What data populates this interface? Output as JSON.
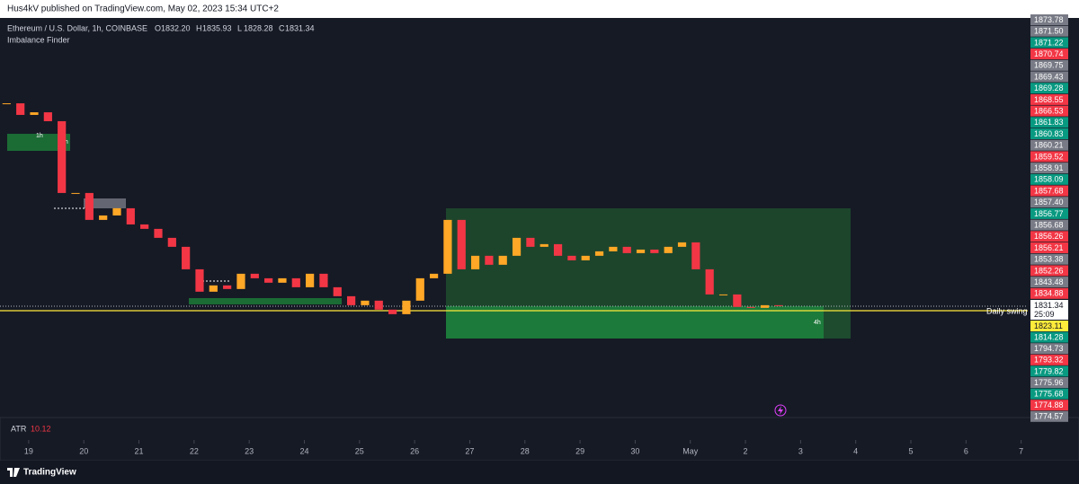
{
  "header": {
    "published": "Hus4kV published on TradingView.com, May 02, 2023 15:34 UTC+2"
  },
  "legend": {
    "symbol": "Ethereum / U.S. Dollar, 1h, COINBASE",
    "ohlc": [
      {
        "letter": "O",
        "value": "1832.20"
      },
      {
        "letter": "H",
        "value": "1835.93"
      },
      {
        "letter": "L",
        "value": "1828.28"
      },
      {
        "letter": "C",
        "value": "1831.34"
      }
    ],
    "indicator": "Imbalance Finder"
  },
  "zones": [
    "1h",
    "1h",
    "4h"
  ],
  "swing_label": "Daily swing",
  "atr": {
    "name": "ATR",
    "value": "10.12"
  },
  "price_labels": [
    {
      "text": "1873.78",
      "color": "#787b86"
    },
    {
      "text": "1871.50",
      "color": "#787b86"
    },
    {
      "text": "1871.22",
      "color": "#089981"
    },
    {
      "text": "1870.74",
      "color": "#f23645"
    },
    {
      "text": "1869.75",
      "color": "#787b86"
    },
    {
      "text": "1869.43",
      "color": "#787b86"
    },
    {
      "text": "1869.28",
      "color": "#089981"
    },
    {
      "text": "1868.55",
      "color": "#f23645"
    },
    {
      "text": "1866.53",
      "color": "#f23645"
    },
    {
      "text": "1861.83",
      "color": "#089981"
    },
    {
      "text": "1860.83",
      "color": "#089981"
    },
    {
      "text": "1860.21",
      "color": "#787b86"
    },
    {
      "text": "1859.52",
      "color": "#f23645"
    },
    {
      "text": "1858.91",
      "color": "#787b86"
    },
    {
      "text": "1858.09",
      "color": "#089981"
    },
    {
      "text": "1857.68",
      "color": "#f23645"
    },
    {
      "text": "1857.40",
      "color": "#787b86"
    },
    {
      "text": "1856.77",
      "color": "#089981"
    },
    {
      "text": "1856.68",
      "color": "#787b86"
    },
    {
      "text": "1856.26",
      "color": "#f23645"
    },
    {
      "text": "1856.21",
      "color": "#f23645"
    },
    {
      "text": "1853.38",
      "color": "#787b86"
    },
    {
      "text": "1852.26",
      "color": "#f23645"
    },
    {
      "text": "1843.48",
      "color": "#787b86"
    },
    {
      "text": "1834.88",
      "color": "#f23645"
    },
    {
      "text": "1831.34",
      "countdown": "25:09",
      "color": "#ffffff"
    },
    {
      "text": "1823.11",
      "color": "#ffeb3b"
    },
    {
      "text": "1814.28",
      "color": "#089981"
    },
    {
      "text": "1794.73",
      "color": "#787b86"
    },
    {
      "text": "1793.32",
      "color": "#f23645"
    },
    {
      "text": "1779.82",
      "color": "#089981"
    },
    {
      "text": "1775.96",
      "color": "#787b86"
    },
    {
      "text": "1775.68",
      "color": "#089981"
    },
    {
      "text": "1774.88",
      "color": "#f23645"
    },
    {
      "text": "1774.57",
      "color": "#787b86"
    }
  ],
  "footer": {
    "brand": "TradingView"
  },
  "chart_data": {
    "type": "candlestick",
    "up_color": "#ffa726",
    "down_color": "#f23645",
    "xlim": [
      -0.52,
      18.12
    ],
    "ylim": [
      1686,
      2207
    ],
    "xticks": [
      {
        "value": 0,
        "label": "19"
      },
      {
        "value": 1,
        "label": "20"
      },
      {
        "value": 2,
        "label": "21"
      },
      {
        "value": 3,
        "label": "22"
      },
      {
        "value": 4,
        "label": "23"
      },
      {
        "value": 5,
        "label": "24"
      },
      {
        "value": 6,
        "label": "25"
      },
      {
        "value": 7,
        "label": "26"
      },
      {
        "value": 8,
        "label": "27"
      },
      {
        "value": 9,
        "label": "28"
      },
      {
        "value": 10,
        "label": "29"
      },
      {
        "value": 11,
        "label": "30"
      },
      {
        "value": 12,
        "label": "May"
      },
      {
        "value": 13,
        "label": "2"
      },
      {
        "value": 14,
        "label": "3"
      },
      {
        "value": 15,
        "label": "4"
      },
      {
        "value": 16,
        "label": "5"
      },
      {
        "value": 17,
        "label": "6"
      },
      {
        "value": 18,
        "label": "7"
      }
    ],
    "x": [
      -0.4,
      -0.15,
      0.1,
      0.35,
      0.6,
      0.85,
      1.1,
      1.35,
      1.6,
      1.85,
      2.1,
      2.35,
      2.6,
      2.85,
      3.1,
      3.35,
      3.6,
      3.85,
      4.1,
      4.35,
      4.6,
      4.85,
      5.1,
      5.35,
      5.6,
      5.85,
      6.1,
      6.35,
      6.6,
      6.85,
      7.1,
      7.35,
      7.6,
      7.85,
      8.1,
      8.35,
      8.6,
      8.85,
      9.1,
      9.35,
      9.6,
      9.85,
      10.1,
      10.35,
      10.6,
      10.85,
      11.1,
      11.35,
      11.6,
      11.85,
      12.1,
      12.35,
      12.6,
      12.85,
      13.1,
      13.35,
      13.6
    ],
    "values": [
      2095.7,
      2080.6,
      2084.0,
      2072.4,
      1978.8,
      1978.8,
      1943.7,
      1949.5,
      1958.9,
      1937.8,
      1932.0,
      1920.3,
      1908.6,
      1879.3,
      1850.1,
      1858.3,
      1853.6,
      1873.5,
      1867.6,
      1861.8,
      1867.6,
      1855.9,
      1873.5,
      1855.9,
      1844.2,
      1832.5,
      1838.4,
      1826.7,
      1820.8,
      1838.4,
      1867.6,
      1873.5,
      1943.7,
      1879.3,
      1896.9,
      1885.2,
      1896.9,
      1920.3,
      1908.6,
      1912.1,
      1896.9,
      1891.0,
      1896.9,
      1902.7,
      1908.6,
      1900.4,
      1905.0,
      1900.4,
      1908.6,
      1914.4,
      1879.3,
      1846.5,
      1846.5,
      1830.2,
      1829.0,
      1832.5,
      1831.34
    ]
  }
}
